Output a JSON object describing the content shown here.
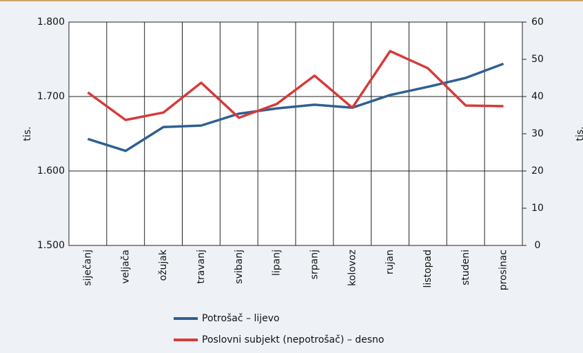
{
  "chart_data": {
    "type": "line",
    "categories": [
      "siječanj",
      "veljača",
      "ožujak",
      "travanj",
      "svibanj",
      "lipanj",
      "srpanj",
      "kolovoz",
      "rujan",
      "listopad",
      "studeni",
      "prosinac"
    ],
    "series": [
      {
        "name": "Potrošač – lijevo",
        "color": "#2f5f92",
        "values": [
          1643,
          1627,
          1659,
          1661,
          1677,
          1684,
          1689,
          1685,
          1702,
          1713,
          1725,
          1744
        ]
      },
      {
        "name": "Poslovni subjekt (nepotrošač) – desno",
        "color": "#d63a3a",
        "axis": "y2",
        "values": [
          41.1,
          33.7,
          35.7,
          43.7,
          34.3,
          38,
          45.6,
          37,
          52.2,
          47.6,
          37.6,
          37.4
        ]
      }
    ],
    "ylabel": "tis.",
    "y2label": "tis.",
    "ylim": [
      1500,
      1800
    ],
    "yticks": [
      {
        "value": 1500,
        "label": "1.500"
      },
      {
        "value": 1600,
        "label": "1.600"
      },
      {
        "value": 1700,
        "label": "1.700"
      },
      {
        "value": 1800,
        "label": "1.800"
      }
    ],
    "y2lim": [
      0,
      60
    ],
    "y2ticks": [
      0,
      10,
      20,
      30,
      40,
      50,
      60
    ],
    "grid": true
  }
}
